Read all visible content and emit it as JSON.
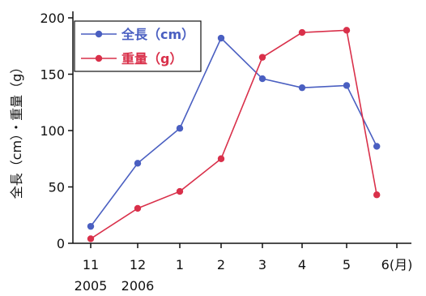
{
  "chart_data": {
    "type": "line",
    "title": "",
    "xlabel": "",
    "ylabel": "全長（cm）・重量（g）",
    "ylim": [
      0,
      200
    ],
    "yticks": [
      0,
      50,
      100,
      150,
      200
    ],
    "x_ticks": [
      "11",
      "12",
      "1",
      "2",
      "3",
      "4",
      "5",
      "6(月)"
    ],
    "year_labels": [
      "2005",
      "2006"
    ],
    "grid": false,
    "legend_position": "top-left",
    "series": [
      {
        "name": "全長（cm）",
        "color": "#4a5fc1",
        "x": [
          11,
          12,
          1,
          2,
          3,
          4,
          5,
          5.6
        ],
        "values": [
          15,
          71,
          102,
          182,
          146,
          138,
          140,
          86
        ]
      },
      {
        "name": "重量（g）",
        "color": "#d9304a",
        "x": [
          11,
          12,
          1,
          2,
          3,
          4,
          5,
          5.6
        ],
        "values": [
          4,
          31,
          46,
          75,
          165,
          187,
          189,
          43
        ]
      }
    ]
  }
}
